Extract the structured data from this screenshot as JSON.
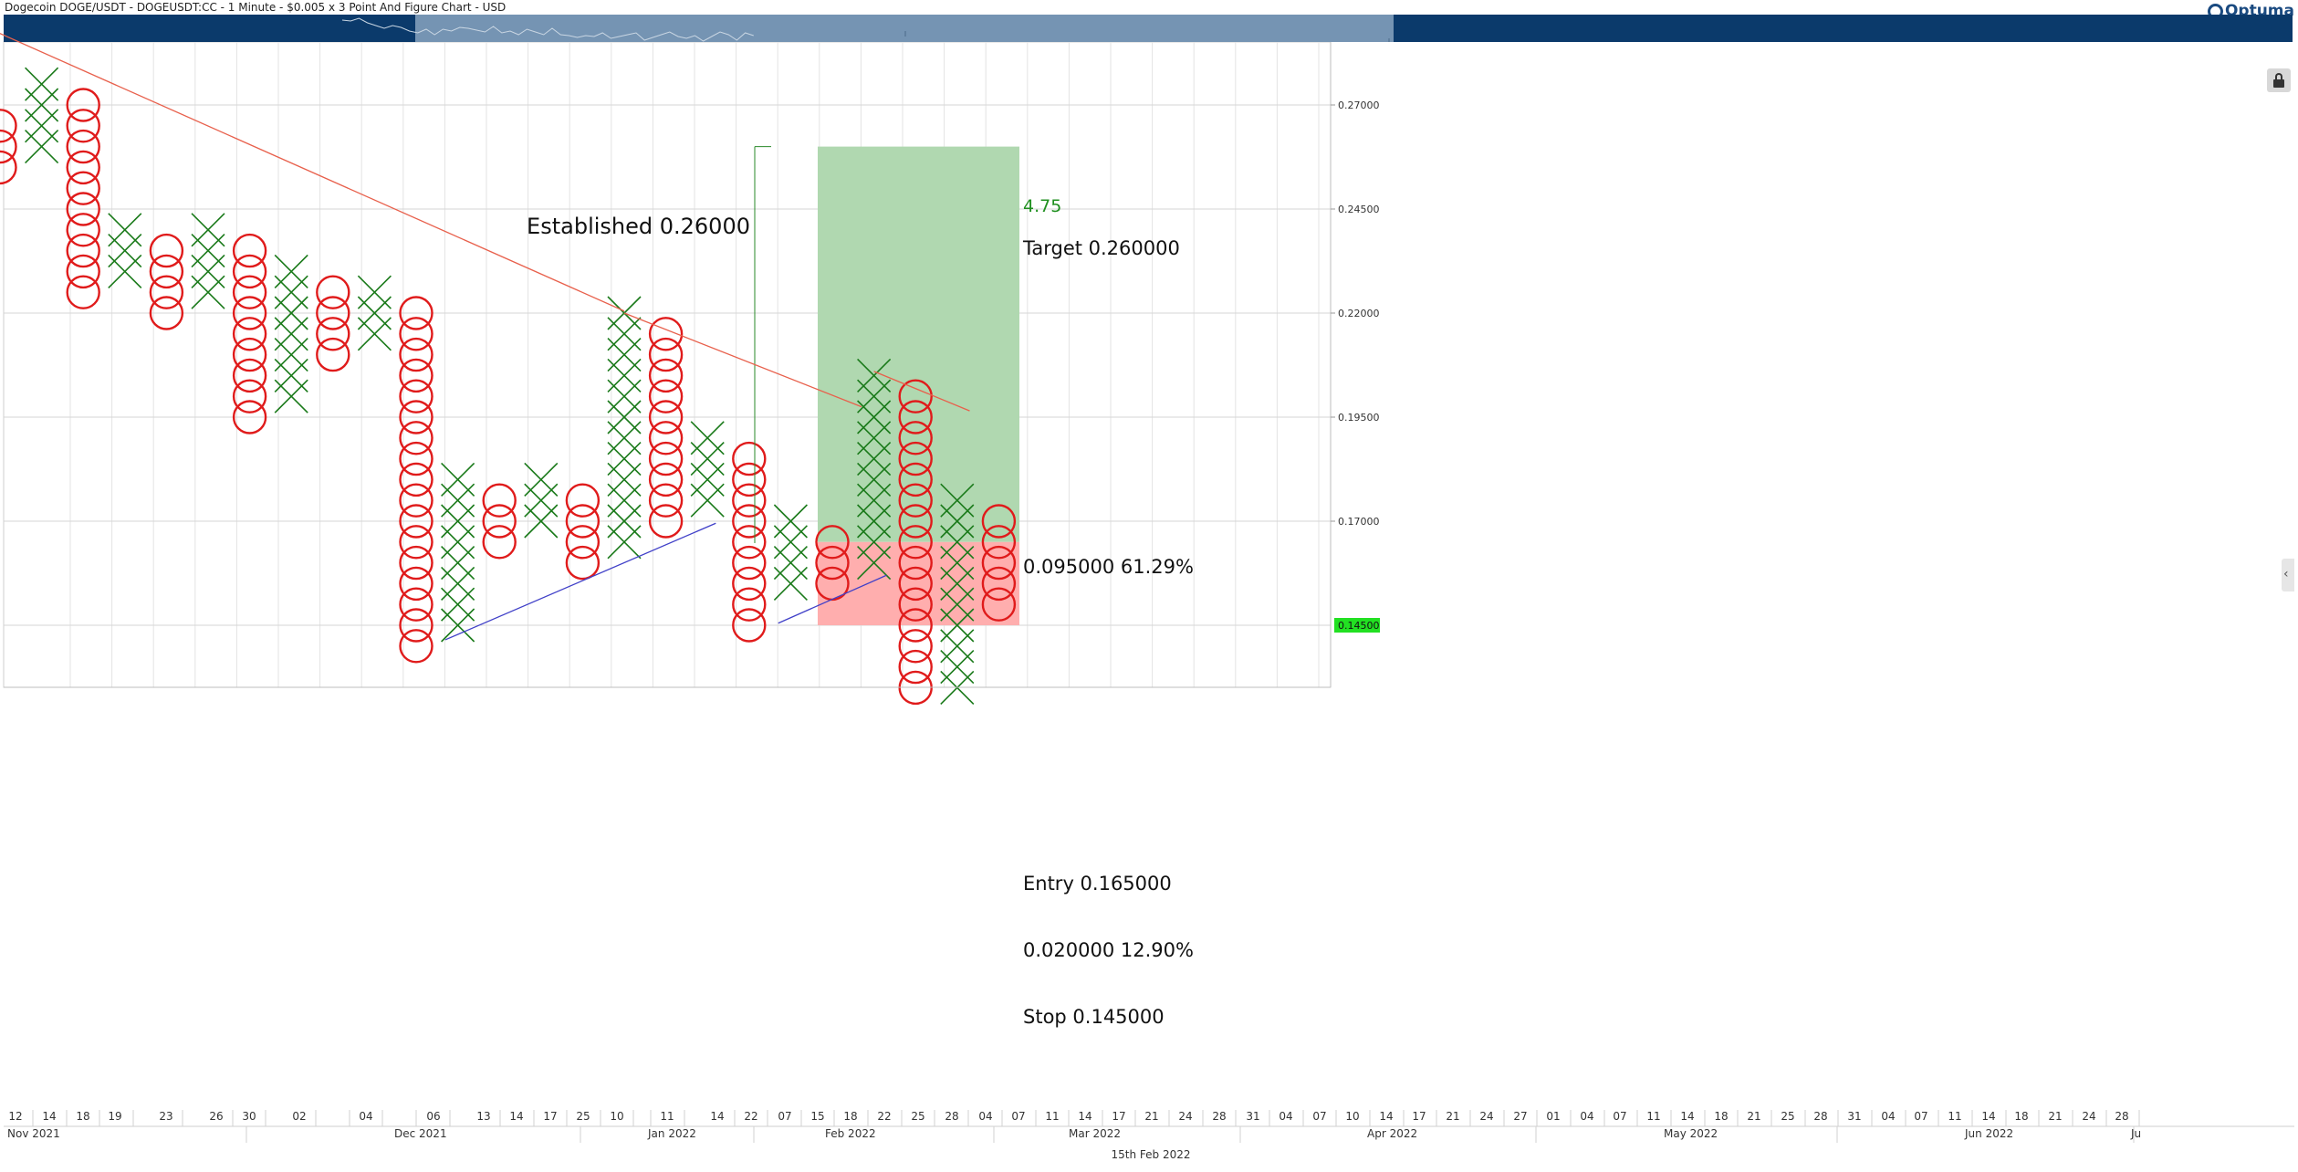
{
  "header": {
    "title": "Dogecoin DOGE/USDT - DOGEUSDT:CC - 1 Minute - $0.005 x 3 Point And Figure Chart - USD",
    "logo_text": "Optuma"
  },
  "colors": {
    "navigator_dark": "#0b3a6b",
    "navigator_light": "#7594b3",
    "x_mark": "#1a7a1a",
    "o_mark": "#e01b1b",
    "trendline_red": "#e8604c",
    "trendline_blue": "#4040c8",
    "target_zone": "#b0d8b0",
    "stop_zone": "#ffaeae",
    "price_tag": "#22e022"
  },
  "chart_data": {
    "type": "point-and-figure",
    "instrument": "DOGE/USDT",
    "box_size": 0.005,
    "reversal": 3,
    "price_axis": {
      "ticks": [
        "0.27000",
        "0.24500",
        "0.22000",
        "0.19500",
        "0.17000"
      ],
      "tick_values": [
        0.27,
        0.245,
        0.22,
        0.195,
        0.17
      ],
      "current_price_tag": "0.14500",
      "range": [
        0.13,
        0.285
      ]
    },
    "columns": [
      {
        "type": "O",
        "high": 0.265,
        "low": 0.255
      },
      {
        "type": "X",
        "high": 0.275,
        "low": 0.26
      },
      {
        "type": "O",
        "high": 0.27,
        "low": 0.225
      },
      {
        "type": "X",
        "high": 0.24,
        "low": 0.23
      },
      {
        "type": "O",
        "high": 0.235,
        "low": 0.22
      },
      {
        "type": "X",
        "high": 0.24,
        "low": 0.225
      },
      {
        "type": "O",
        "high": 0.235,
        "low": 0.195
      },
      {
        "type": "X",
        "high": 0.23,
        "low": 0.2
      },
      {
        "type": "O",
        "high": 0.225,
        "low": 0.21
      },
      {
        "type": "X",
        "high": 0.225,
        "low": 0.215
      },
      {
        "type": "O",
        "high": 0.22,
        "low": 0.14
      },
      {
        "type": "X",
        "high": 0.18,
        "low": 0.145
      },
      {
        "type": "O",
        "high": 0.175,
        "low": 0.165
      },
      {
        "type": "X",
        "high": 0.18,
        "low": 0.17
      },
      {
        "type": "O",
        "high": 0.175,
        "low": 0.16
      },
      {
        "type": "X",
        "high": 0.22,
        "low": 0.165
      },
      {
        "type": "O",
        "high": 0.215,
        "low": 0.17
      },
      {
        "type": "X",
        "high": 0.19,
        "low": 0.175
      },
      {
        "type": "O",
        "high": 0.185,
        "low": 0.145
      },
      {
        "type": "X",
        "high": 0.17,
        "low": 0.155
      },
      {
        "type": "O",
        "high": 0.165,
        "low": 0.155
      },
      {
        "type": "X",
        "high": 0.205,
        "low": 0.16
      },
      {
        "type": "O",
        "high": 0.2,
        "low": 0.13
      },
      {
        "type": "X",
        "high": 0.175,
        "low": 0.13
      },
      {
        "type": "O",
        "high": 0.17,
        "low": 0.15
      }
    ],
    "trendlines": [
      {
        "color": "red",
        "from": {
          "col": -0.3,
          "price": 0.2885
        },
        "to": {
          "col": 15,
          "price": 0.2205
        }
      },
      {
        "color": "red",
        "from": {
          "col": 15,
          "price": 0.22
        },
        "to": {
          "col": 20.7,
          "price": 0.1975
        }
      },
      {
        "color": "red",
        "from": {
          "col": 21,
          "price": 0.206
        },
        "to": {
          "col": 23.3,
          "price": 0.1965
        }
      },
      {
        "color": "blue",
        "from": {
          "col": 10.7,
          "price": 0.1415
        },
        "to": {
          "col": 17.2,
          "price": 0.1695
        }
      },
      {
        "color": "blue",
        "from": {
          "col": 18.7,
          "price": 0.1455
        },
        "to": {
          "col": 21.3,
          "price": 0.157
        }
      }
    ],
    "established": {
      "label": "Established 0.26000",
      "price": 0.26
    },
    "trade": {
      "ratio_label": "4.75",
      "target_label": "Target   0.260000",
      "reward_label": "0.095000   61.29%",
      "entry_label": "Entry   0.165000",
      "risk_label": "0.020000   12.90%",
      "stop_label": "Stop   0.145000",
      "target": 0.26,
      "entry": 0.165,
      "stop": 0.145
    },
    "x_axis": {
      "day_ticks": [
        "12",
        "14",
        "18",
        "19",
        "23",
        "26",
        "30",
        "02",
        "04",
        "06",
        "13",
        "14",
        "17",
        "25",
        "10",
        "11",
        "14",
        "22",
        "07",
        "15",
        "18",
        "22",
        "25",
        "28",
        "04",
        "07",
        "11",
        "14",
        "17",
        "21",
        "24",
        "28",
        "31",
        "04",
        "07",
        "10",
        "14",
        "17",
        "21",
        "24",
        "27",
        "01",
        "04",
        "07",
        "11",
        "14",
        "18",
        "21",
        "25",
        "28",
        "31",
        "04",
        "07",
        "11",
        "14",
        "18",
        "21",
        "24",
        "28"
      ],
      "months": [
        "Nov 2021",
        "Dec 2021",
        "Jan 2022",
        "Feb 2022",
        "Mar 2022",
        "Apr 2022",
        "May 2022",
        "Jun 2022",
        "Ju"
      ],
      "footer_date": "15th Feb 2022"
    }
  }
}
